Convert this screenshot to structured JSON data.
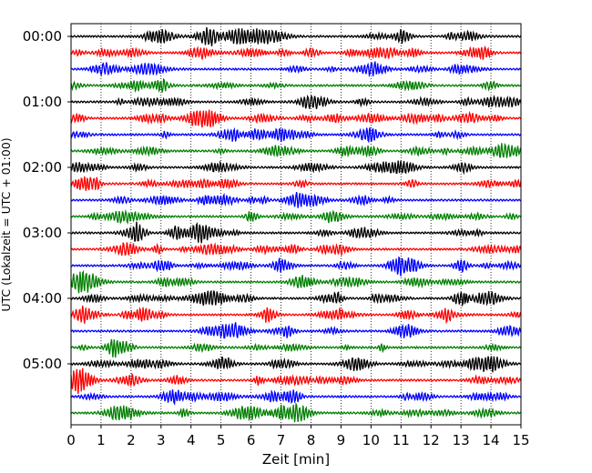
{
  "chart_data": {
    "type": "line",
    "title": "",
    "xlabel": "Zeit  [min]",
    "ylabel": "UTC (Lokalzeit = UTC + 01:00)",
    "xlim": [
      0,
      15
    ],
    "x_ticks": [
      0,
      1,
      2,
      3,
      4,
      5,
      6,
      7,
      8,
      9,
      10,
      11,
      12,
      13,
      14,
      15
    ],
    "y_ticks": [
      "00:00",
      "01:00",
      "02:00",
      "03:00",
      "04:00",
      "05:00"
    ],
    "rows_per_hour": 4,
    "row_minutes": 15,
    "n_rows": 24,
    "trace_colors": [
      "#000000",
      "#ff0000",
      "#0000ff",
      "#008000"
    ],
    "grid_x": true,
    "grid_style": "dotted"
  }
}
